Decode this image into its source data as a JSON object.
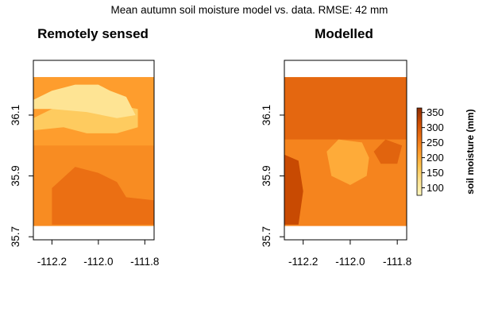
{
  "chart_data": {
    "type": "heatmap",
    "title": "Mean autumn soil moisture model vs. data. RMSE: 42 mm",
    "panels": [
      {
        "title": "Remotely sensed",
        "x_ticks": [
          -112.2,
          -112.0,
          -111.8
        ],
        "x_tick_labels": [
          "-112.2",
          "-112.0",
          "-111.8"
        ],
        "y_ticks": [
          35.7,
          35.9,
          36.1
        ],
        "y_tick_labels": [
          "35.7",
          "35.9",
          "36.1"
        ],
        "xlim": [
          -112.28,
          -111.76
        ],
        "ylim": [
          35.69,
          36.28
        ],
        "data_extent": {
          "x": [
            -112.28,
            -111.76
          ],
          "y": [
            35.735,
            36.225
          ]
        },
        "regions": [
          {
            "shape": "rect",
            "x": [
              -112.28,
              -111.76
            ],
            "y": [
              35.735,
              36.225
            ],
            "value": 235
          },
          {
            "shape": "rect",
            "x": [
              -112.28,
              -111.76
            ],
            "y": [
              36.0,
              36.225
            ],
            "value": 215
          },
          {
            "shape": "polygon",
            "points": [
              [
                -112.28,
                36.09
              ],
              [
                -112.2,
                36.12
              ],
              [
                -112.1,
                36.14
              ],
              [
                -112.0,
                36.14
              ],
              [
                -111.9,
                36.13
              ],
              [
                -111.83,
                36.12
              ],
              [
                -111.83,
                36.06
              ],
              [
                -111.92,
                36.04
              ],
              [
                -112.05,
                36.04
              ],
              [
                -112.15,
                36.06
              ],
              [
                -112.28,
                36.05
              ]
            ],
            "value": 160
          },
          {
            "shape": "polygon",
            "points": [
              [
                -112.28,
                36.15
              ],
              [
                -112.2,
                36.18
              ],
              [
                -112.1,
                36.2
              ],
              [
                -112.0,
                36.2
              ],
              [
                -111.95,
                36.18
              ],
              [
                -111.88,
                36.16
              ],
              [
                -111.84,
                36.1
              ],
              [
                -111.92,
                36.09
              ],
              [
                -112.05,
                36.11
              ],
              [
                -112.2,
                36.12
              ],
              [
                -112.28,
                36.12
              ]
            ],
            "value": 120
          },
          {
            "shape": "polygon",
            "points": [
              [
                -112.2,
                35.74
              ],
              [
                -112.2,
                35.86
              ],
              [
                -112.1,
                35.93
              ],
              [
                -112.0,
                35.91
              ],
              [
                -111.92,
                35.88
              ],
              [
                -111.88,
                35.83
              ],
              [
                -111.76,
                35.82
              ],
              [
                -111.76,
                35.74
              ]
            ],
            "value": 270
          }
        ]
      },
      {
        "title": "Modelled",
        "x_ticks": [
          -112.2,
          -112.0,
          -111.8
        ],
        "x_tick_labels": [
          "-112.2",
          "-112.0",
          "-111.8"
        ],
        "y_ticks": [
          35.7,
          35.9,
          36.1
        ],
        "y_tick_labels": [
          "35.7",
          "35.9",
          "36.1"
        ],
        "xlim": [
          -112.28,
          -111.76
        ],
        "ylim": [
          35.69,
          36.28
        ],
        "data_extent": {
          "x": [
            -112.28,
            -111.76
          ],
          "y": [
            35.735,
            36.225
          ]
        },
        "regions": [
          {
            "shape": "rect",
            "x": [
              -112.28,
              -111.76
            ],
            "y": [
              35.735,
              36.225
            ],
            "value": 245
          },
          {
            "shape": "rect",
            "x": [
              -112.28,
              -111.76
            ],
            "y": [
              36.02,
              36.225
            ],
            "value": 280
          },
          {
            "shape": "polygon",
            "points": [
              [
                -112.1,
                35.98
              ],
              [
                -112.05,
                36.02
              ],
              [
                -111.95,
                36.01
              ],
              [
                -111.92,
                35.96
              ],
              [
                -111.93,
                35.9
              ],
              [
                -112.0,
                35.87
              ],
              [
                -112.08,
                35.9
              ]
            ],
            "value": 200
          },
          {
            "shape": "polygon",
            "points": [
              [
                -112.28,
                35.74
              ],
              [
                -112.28,
                35.97
              ],
              [
                -112.22,
                35.95
              ],
              [
                -112.2,
                35.85
              ],
              [
                -112.22,
                35.74
              ]
            ],
            "value": 320
          },
          {
            "shape": "polygon",
            "points": [
              [
                -111.9,
                35.98
              ],
              [
                -111.85,
                36.02
              ],
              [
                -111.78,
                36.0
              ],
              [
                -111.8,
                35.94
              ],
              [
                -111.87,
                35.94
              ]
            ],
            "value": 285
          }
        ]
      }
    ],
    "colorbar": {
      "label": "soil moisture (mm)",
      "range": [
        75,
        365
      ],
      "ticks": [
        100,
        150,
        200,
        250,
        300,
        350
      ],
      "tick_labels": [
        "100",
        "150",
        "200",
        "250",
        "300",
        "350"
      ],
      "colormap": [
        "#FFF7BC",
        "#FEE391",
        "#FEC44F",
        "#FE9929",
        "#EC7014",
        "#CC4C02",
        "#8C2D04"
      ]
    }
  }
}
